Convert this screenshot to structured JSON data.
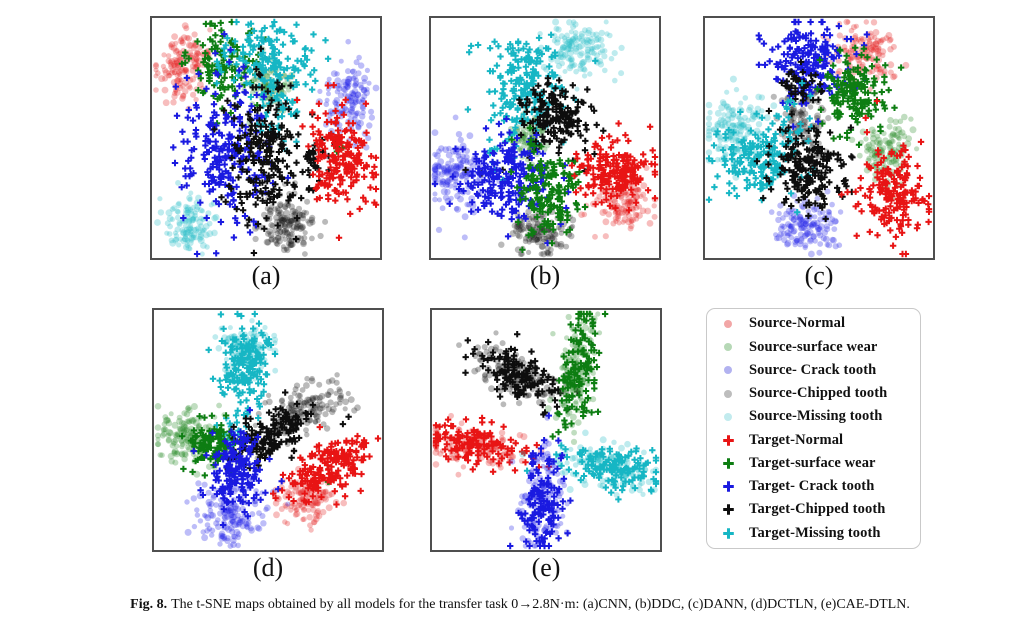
{
  "caption": {
    "label": "Fig. 8.",
    "text": "The t-SNE maps obtained by all models for the transfer task 0→2.8N·m: (a)CNN, (b)DDC, (c)DANN, (d)DCTLN, (e)CAE-DTLN."
  },
  "colors": {
    "target_normal": "#e81414",
    "target_surface": "#0d7d12",
    "target_crack": "#1a1ae0",
    "target_chipped": "#0d0d0d",
    "target_missing": "#16b6c4",
    "panel_border": "#4f4f4f",
    "legend_border": "#c9c9c9"
  },
  "legend": {
    "items": [
      {
        "label": "Source-Normal",
        "marker": "circle",
        "color": "#f2a6a6"
      },
      {
        "label": "Source-surface wear",
        "marker": "circle",
        "color": "#b6d8b6"
      },
      {
        "label": "Source- Crack tooth",
        "marker": "circle",
        "color": "#b2b2f0"
      },
      {
        "label": "Source-Chipped tooth",
        "marker": "circle",
        "color": "#bdbdbd"
      },
      {
        "label": "Source-Missing tooth",
        "marker": "circle",
        "color": "#c2ebee"
      },
      {
        "label": "Target-Normal",
        "marker": "plus",
        "color": "#e81414"
      },
      {
        "label": "Target-surface wear",
        "marker": "plus",
        "color": "#0d7d12"
      },
      {
        "label": "Target- Crack tooth",
        "marker": "plus",
        "color": "#1a1ae0"
      },
      {
        "label": "Target-Chipped tooth",
        "marker": "plus",
        "color": "#0d0d0d"
      },
      {
        "label": "Target-Missing tooth",
        "marker": "plus",
        "color": "#16b6c4"
      }
    ]
  },
  "chart_data": [
    {
      "type": "scatter",
      "panel_label": "(a)",
      "model": "CNN",
      "note": "t-SNE map; clusters given as center (cx,cy in 0-1 panel coords, y down), gaussian spreads rx/ry, rotation deg, point count",
      "clusters": [
        {
          "label": "Source-Normal",
          "marker": "circle",
          "color": "#e62626",
          "cx": 0.135,
          "cy": 0.195,
          "rx": 0.055,
          "ry": 0.075,
          "rot": 0,
          "n": 150
        },
        {
          "label": "Source-surface wear",
          "marker": "circle",
          "color": "#2f8d2f",
          "cx": 0.52,
          "cy": 0.29,
          "rx": 0.05,
          "ry": 0.055,
          "rot": 0,
          "n": 90
        },
        {
          "label": "Source- Crack tooth",
          "marker": "circle",
          "color": "#2424e8",
          "cx": 0.865,
          "cy": 0.33,
          "rx": 0.055,
          "ry": 0.08,
          "rot": 0,
          "n": 140
        },
        {
          "label": "Source-Chipped tooth",
          "marker": "circle",
          "color": "#1c1c1c",
          "cx": 0.6,
          "cy": 0.865,
          "rx": 0.065,
          "ry": 0.06,
          "rot": 0,
          "n": 150
        },
        {
          "label": "Source-Missing tooth",
          "marker": "circle",
          "color": "#28bcc8",
          "cx": 0.165,
          "cy": 0.86,
          "rx": 0.055,
          "ry": 0.06,
          "rot": 0,
          "n": 120
        },
        {
          "label": "Target-surface wear",
          "marker": "plus",
          "color": "#0d7d12",
          "cx": 0.3,
          "cy": 0.21,
          "rx": 0.075,
          "ry": 0.08,
          "rot": 0,
          "n": 120
        },
        {
          "label": "Target-Missing tooth",
          "marker": "plus",
          "color": "#16b6c4",
          "cx": 0.5,
          "cy": 0.17,
          "rx": 0.105,
          "ry": 0.08,
          "rot": 0,
          "n": 150
        },
        {
          "label": "Target-Missing tooth",
          "marker": "plus",
          "color": "#16b6c4",
          "cx": 0.55,
          "cy": 0.4,
          "rx": 0.05,
          "ry": 0.07,
          "rot": 0,
          "n": 45
        },
        {
          "label": "Target- Crack tooth",
          "marker": "plus",
          "color": "#1a1ae0",
          "cx": 0.32,
          "cy": 0.55,
          "rx": 0.1,
          "ry": 0.155,
          "rot": 0,
          "n": 230
        },
        {
          "label": "Target-Chipped tooth",
          "marker": "plus",
          "color": "#0d0d0d",
          "cx": 0.5,
          "cy": 0.57,
          "rx": 0.085,
          "ry": 0.15,
          "rot": 0,
          "n": 210
        },
        {
          "label": "Target-Chipped tooth",
          "marker": "plus",
          "color": "#0d0d0d",
          "cx": 0.71,
          "cy": 0.6,
          "rx": 0.035,
          "ry": 0.06,
          "rot": 0,
          "n": 28
        },
        {
          "label": "Target-surface wear",
          "marker": "plus",
          "color": "#0d7d12",
          "cx": 0.82,
          "cy": 0.53,
          "rx": 0.02,
          "ry": 0.03,
          "rot": 0,
          "n": 6
        },
        {
          "label": "Target-Normal",
          "marker": "plus",
          "color": "#e81414",
          "cx": 0.83,
          "cy": 0.58,
          "rx": 0.07,
          "ry": 0.105,
          "rot": 0,
          "n": 200
        }
      ]
    },
    {
      "type": "scatter",
      "panel_label": "(b)",
      "model": "DDC",
      "clusters": [
        {
          "label": "Source-Missing tooth",
          "marker": "circle",
          "color": "#28bcc8",
          "cx": 0.645,
          "cy": 0.125,
          "rx": 0.075,
          "ry": 0.055,
          "rot": 0,
          "n": 140
        },
        {
          "label": "Source-surface wear",
          "marker": "circle",
          "color": "#2f8d2f",
          "cx": 0.44,
          "cy": 0.5,
          "rx": 0.04,
          "ry": 0.055,
          "rot": 0,
          "n": 85
        },
        {
          "label": "Source- Crack tooth",
          "marker": "circle",
          "color": "#2424e8",
          "cx": 0.115,
          "cy": 0.655,
          "rx": 0.075,
          "ry": 0.075,
          "rot": 0,
          "n": 150
        },
        {
          "label": "Source-Normal",
          "marker": "circle",
          "color": "#e62626",
          "cx": 0.845,
          "cy": 0.775,
          "rx": 0.06,
          "ry": 0.055,
          "rot": 0,
          "n": 120
        },
        {
          "label": "Source-Chipped tooth",
          "marker": "circle",
          "color": "#1c1c1c",
          "cx": 0.475,
          "cy": 0.895,
          "rx": 0.06,
          "ry": 0.05,
          "rot": 0,
          "n": 130
        },
        {
          "label": "Target-Missing tooth",
          "marker": "plus",
          "color": "#16b6c4",
          "cx": 0.42,
          "cy": 0.27,
          "rx": 0.085,
          "ry": 0.1,
          "rot": 0,
          "n": 180
        },
        {
          "label": "Target-Missing tooth",
          "marker": "plus",
          "color": "#16b6c4",
          "cx": 0.3,
          "cy": 0.57,
          "rx": 0.04,
          "ry": 0.04,
          "rot": 0,
          "n": 14
        },
        {
          "label": "Target-Chipped tooth",
          "marker": "plus",
          "color": "#0d0d0d",
          "cx": 0.565,
          "cy": 0.41,
          "rx": 0.085,
          "ry": 0.07,
          "rot": 0,
          "n": 160
        },
        {
          "label": "Target-Chipped tooth",
          "marker": "plus",
          "color": "#0d0d0d",
          "cx": 0.5,
          "cy": 0.6,
          "rx": 0.22,
          "ry": 0.035,
          "rot": 0,
          "n": 10
        },
        {
          "label": "Target- Crack tooth",
          "marker": "plus",
          "color": "#1a1ae0",
          "cx": 0.33,
          "cy": 0.67,
          "rx": 0.1,
          "ry": 0.09,
          "rot": 0,
          "n": 210
        },
        {
          "label": "Target-surface wear",
          "marker": "plus",
          "color": "#0d7d12",
          "cx": 0.52,
          "cy": 0.72,
          "rx": 0.065,
          "ry": 0.09,
          "rot": 0,
          "n": 160
        },
        {
          "label": "Target-Normal",
          "marker": "plus",
          "color": "#e81414",
          "cx": 0.82,
          "cy": 0.64,
          "rx": 0.085,
          "ry": 0.065,
          "rot": 0,
          "n": 180
        }
      ]
    },
    {
      "type": "scatter",
      "panel_label": "(c)",
      "model": "DANN",
      "clusters": [
        {
          "label": "Source-Normal",
          "marker": "circle",
          "color": "#e62626",
          "cx": 0.695,
          "cy": 0.145,
          "rx": 0.065,
          "ry": 0.065,
          "rot": 0,
          "n": 130
        },
        {
          "label": "Source-Chipped tooth",
          "marker": "circle",
          "color": "#1c1c1c",
          "cx": 0.43,
          "cy": 0.43,
          "rx": 0.05,
          "ry": 0.08,
          "rot": 0,
          "n": 110
        },
        {
          "label": "Source-Missing tooth",
          "marker": "circle",
          "color": "#28bcc8",
          "cx": 0.125,
          "cy": 0.46,
          "rx": 0.07,
          "ry": 0.08,
          "rot": 0,
          "n": 140
        },
        {
          "label": "Source-surface wear",
          "marker": "circle",
          "color": "#2f8d2f",
          "cx": 0.795,
          "cy": 0.55,
          "rx": 0.055,
          "ry": 0.065,
          "rot": 0,
          "n": 120
        },
        {
          "label": "Source- Crack tooth",
          "marker": "circle",
          "color": "#2424e8",
          "cx": 0.455,
          "cy": 0.875,
          "rx": 0.065,
          "ry": 0.055,
          "rot": 0,
          "n": 140
        },
        {
          "label": "Target- Crack tooth",
          "marker": "plus",
          "color": "#1a1ae0",
          "cx": 0.45,
          "cy": 0.185,
          "rx": 0.09,
          "ry": 0.095,
          "rot": 0,
          "n": 190
        },
        {
          "label": "Target-Chipped tooth",
          "marker": "plus",
          "color": "#0d0d0d",
          "cx": 0.42,
          "cy": 0.28,
          "rx": 0.05,
          "ry": 0.035,
          "rot": 0,
          "n": 40
        },
        {
          "label": "Target-surface wear",
          "marker": "plus",
          "color": "#0d7d12",
          "cx": 0.655,
          "cy": 0.3,
          "rx": 0.075,
          "ry": 0.075,
          "rot": 0,
          "n": 150
        },
        {
          "label": "Target-Missing tooth",
          "marker": "plus",
          "color": "#16b6c4",
          "cx": 0.21,
          "cy": 0.59,
          "rx": 0.08,
          "ry": 0.075,
          "rot": 0,
          "n": 160
        },
        {
          "label": "Target-Missing tooth",
          "marker": "plus",
          "color": "#16b6c4",
          "cx": 0.36,
          "cy": 0.48,
          "rx": 0.05,
          "ry": 0.09,
          "rot": 0,
          "n": 40
        },
        {
          "label": "Target-Chipped tooth",
          "marker": "plus",
          "color": "#0d0d0d",
          "cx": 0.46,
          "cy": 0.63,
          "rx": 0.08,
          "ry": 0.08,
          "rot": 0,
          "n": 180
        },
        {
          "label": "Target-Normal",
          "marker": "plus",
          "color": "#e81414",
          "cx": 0.82,
          "cy": 0.72,
          "rx": 0.075,
          "ry": 0.095,
          "rot": 0,
          "n": 180
        }
      ]
    },
    {
      "type": "scatter",
      "panel_label": "(d)",
      "model": "DCTLN",
      "clusters": [
        {
          "label": "Source-Missing tooth",
          "marker": "circle",
          "color": "#28bcc8",
          "cx": 0.41,
          "cy": 0.155,
          "rx": 0.055,
          "ry": 0.05,
          "rot": 0,
          "n": 110
        },
        {
          "label": "Source-surface wear",
          "marker": "circle",
          "color": "#2f8d2f",
          "cx": 0.15,
          "cy": 0.53,
          "rx": 0.075,
          "ry": 0.06,
          "rot": 0,
          "n": 140
        },
        {
          "label": "Source-Chipped tooth",
          "marker": "circle",
          "color": "#1c1c1c",
          "cx": 0.655,
          "cy": 0.42,
          "rx": 0.09,
          "ry": 0.05,
          "rot": -25,
          "n": 150
        },
        {
          "label": "Source-Normal",
          "marker": "circle",
          "color": "#e62626",
          "cx": 0.675,
          "cy": 0.785,
          "rx": 0.06,
          "ry": 0.05,
          "rot": 0,
          "n": 110
        },
        {
          "label": "Source- Crack tooth",
          "marker": "circle",
          "color": "#2424e8",
          "cx": 0.335,
          "cy": 0.855,
          "rx": 0.08,
          "ry": 0.06,
          "rot": 0,
          "n": 150
        },
        {
          "label": "Target-Missing tooth",
          "marker": "plus",
          "color": "#16b6c4",
          "cx": 0.4,
          "cy": 0.235,
          "rx": 0.06,
          "ry": 0.085,
          "rot": 0,
          "n": 160
        },
        {
          "label": "Target-Missing tooth",
          "marker": "plus",
          "color": "#16b6c4",
          "cx": 0.33,
          "cy": 0.52,
          "rx": 0.05,
          "ry": 0.04,
          "rot": 0,
          "n": 22
        },
        {
          "label": "Target-Chipped tooth",
          "marker": "plus",
          "color": "#0d0d0d",
          "cx": 0.52,
          "cy": 0.53,
          "rx": 0.1,
          "ry": 0.045,
          "rot": -25,
          "n": 160
        },
        {
          "label": "Target-surface wear",
          "marker": "plus",
          "color": "#0d7d12",
          "cx": 0.26,
          "cy": 0.56,
          "rx": 0.055,
          "ry": 0.05,
          "rot": 0,
          "n": 110
        },
        {
          "label": "Target-surface wear",
          "marker": "plus",
          "color": "#0d7d12",
          "cx": 0.755,
          "cy": 0.715,
          "rx": 0.008,
          "ry": 0.008,
          "rot": 0,
          "n": 2
        },
        {
          "label": "Target- Crack tooth",
          "marker": "plus",
          "color": "#1a1ae0",
          "cx": 0.36,
          "cy": 0.67,
          "rx": 0.06,
          "ry": 0.08,
          "rot": 0,
          "n": 160
        },
        {
          "label": "Target-Normal",
          "marker": "plus",
          "color": "#e81414",
          "cx": 0.765,
          "cy": 0.655,
          "rx": 0.1,
          "ry": 0.05,
          "rot": -35,
          "n": 180
        }
      ]
    },
    {
      "type": "scatter",
      "panel_label": "(e)",
      "model": "CAE-DTLN",
      "clusters": [
        {
          "label": "Source-Chipped tooth",
          "marker": "circle",
          "color": "#1c1c1c",
          "cx": 0.37,
          "cy": 0.27,
          "rx": 0.105,
          "ry": 0.045,
          "rot": 28,
          "n": 130
        },
        {
          "label": "Target-Chipped tooth",
          "marker": "plus",
          "color": "#0d0d0d",
          "cx": 0.37,
          "cy": 0.27,
          "rx": 0.105,
          "ry": 0.045,
          "rot": 28,
          "n": 130
        },
        {
          "label": "Source-surface wear",
          "marker": "circle",
          "color": "#2f8d2f",
          "cx": 0.635,
          "cy": 0.245,
          "rx": 0.042,
          "ry": 0.125,
          "rot": 8,
          "n": 130
        },
        {
          "label": "Target-surface wear",
          "marker": "plus",
          "color": "#0d7d12",
          "cx": 0.635,
          "cy": 0.245,
          "rx": 0.042,
          "ry": 0.125,
          "rot": 8,
          "n": 130
        },
        {
          "label": "Source-Normal",
          "marker": "circle",
          "color": "#e62626",
          "cx": 0.195,
          "cy": 0.565,
          "rx": 0.11,
          "ry": 0.045,
          "rot": 8,
          "n": 130
        },
        {
          "label": "Target-Normal",
          "marker": "plus",
          "color": "#e81414",
          "cx": 0.195,
          "cy": 0.565,
          "rx": 0.11,
          "ry": 0.045,
          "rot": 8,
          "n": 130
        },
        {
          "label": "Source-Missing tooth",
          "marker": "circle",
          "color": "#28bcc8",
          "cx": 0.775,
          "cy": 0.655,
          "rx": 0.11,
          "ry": 0.045,
          "rot": 12,
          "n": 130
        },
        {
          "label": "Target-Missing tooth",
          "marker": "plus",
          "color": "#16b6c4",
          "cx": 0.775,
          "cy": 0.655,
          "rx": 0.11,
          "ry": 0.045,
          "rot": 12,
          "n": 130
        },
        {
          "label": "Source- Crack tooth",
          "marker": "circle",
          "color": "#2424e8",
          "cx": 0.485,
          "cy": 0.785,
          "rx": 0.048,
          "ry": 0.115,
          "rot": 5,
          "n": 130
        },
        {
          "label": "Target- Crack tooth",
          "marker": "plus",
          "color": "#1a1ae0",
          "cx": 0.485,
          "cy": 0.785,
          "rx": 0.048,
          "ry": 0.115,
          "rot": 5,
          "n": 130
        }
      ]
    }
  ]
}
